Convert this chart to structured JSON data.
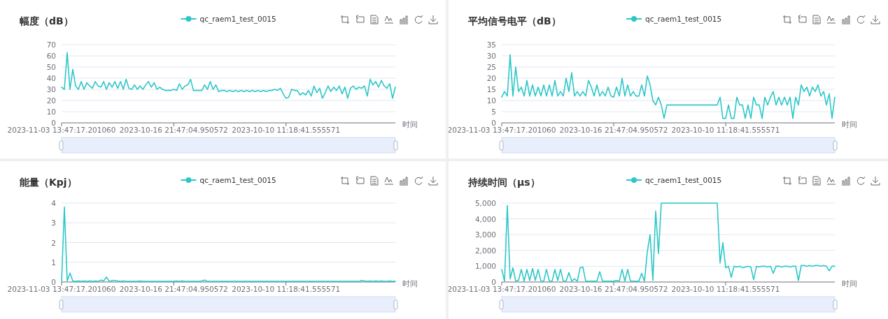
{
  "chart_data": [
    {
      "type": "line",
      "title": "幅度（dB）",
      "xlabel": "时间",
      "legend": "top",
      "grid": "y",
      "ylim": [
        0,
        70
      ],
      "yticks": [
        0,
        10,
        20,
        30,
        40,
        50,
        60,
        70
      ],
      "categories": [
        "2023-11-03 13:47:17.201060",
        null,
        null,
        null,
        null,
        null,
        null,
        null,
        null,
        null,
        null,
        null,
        null,
        null,
        null,
        null,
        null,
        null,
        null,
        null,
        null,
        null,
        null,
        null,
        null,
        null,
        null,
        null,
        null,
        null,
        null,
        null,
        null,
        null,
        null,
        null,
        null,
        null,
        null,
        null,
        "2023-10-16 21:47:04.950572",
        null,
        null,
        null,
        null,
        null,
        null,
        null,
        null,
        null,
        null,
        null,
        null,
        null,
        null,
        null,
        null,
        null,
        null,
        null,
        null,
        null,
        null,
        null,
        null,
        null,
        null,
        null,
        null,
        null,
        null,
        null,
        null,
        null,
        null,
        null,
        null,
        null,
        null,
        null,
        "2023-10-10 11:18:41.555571",
        null,
        null,
        null,
        null,
        null,
        null,
        null,
        null,
        null,
        null,
        null,
        null,
        null,
        null,
        null,
        null,
        null,
        null,
        null,
        null,
        null,
        null,
        null,
        null,
        null,
        null,
        null,
        null,
        null,
        null,
        null,
        null,
        null,
        null,
        null,
        null,
        null,
        null,
        null
      ],
      "series": [
        {
          "name": "qc_raem1_test_0015",
          "color": "#2ec7c9",
          "values": [
            32,
            30,
            63,
            30,
            48,
            33,
            30,
            37,
            30,
            36,
            33,
            31,
            37,
            33,
            32,
            37,
            30,
            36,
            32,
            37,
            31,
            37,
            30,
            39,
            31,
            30,
            34,
            30,
            33,
            30,
            34,
            37,
            32,
            36,
            30,
            32,
            30,
            29,
            29,
            29,
            30,
            29,
            35,
            30,
            33,
            34,
            39,
            29,
            29,
            29,
            29,
            34,
            30,
            37,
            30,
            34,
            28,
            29,
            29,
            28,
            29,
            28,
            29,
            28,
            29,
            28,
            29,
            28,
            29,
            28,
            29,
            28,
            29,
            28,
            29,
            29,
            30,
            29,
            31,
            26,
            22,
            23,
            30,
            29,
            29,
            25,
            27,
            25,
            29,
            24,
            33,
            27,
            31,
            22,
            27,
            33,
            28,
            32,
            29,
            33,
            26,
            32,
            22,
            31,
            33,
            30,
            32,
            31,
            33,
            24,
            39,
            34,
            37,
            32,
            38,
            33,
            31,
            35,
            22,
            32
          ]
        }
      ]
    },
    {
      "type": "line",
      "title": "平均信号电平（dB）",
      "xlabel": "时间",
      "legend": "top",
      "grid": "y",
      "ylim": [
        0,
        35
      ],
      "yticks": [
        0,
        5,
        10,
        15,
        20,
        25,
        30,
        35
      ],
      "categories": [
        "2023-11-03 13:47:17.201060",
        null,
        null,
        null,
        null,
        null,
        null,
        null,
        null,
        null,
        null,
        null,
        null,
        null,
        null,
        null,
        null,
        null,
        null,
        null,
        null,
        null,
        null,
        null,
        null,
        null,
        null,
        null,
        null,
        null,
        null,
        null,
        null,
        null,
        null,
        null,
        null,
        null,
        null,
        null,
        "2023-10-16 21:47:04.950572",
        null,
        null,
        null,
        null,
        null,
        null,
        null,
        null,
        null,
        null,
        null,
        null,
        null,
        null,
        null,
        null,
        null,
        null,
        null,
        null,
        null,
        null,
        null,
        null,
        null,
        null,
        null,
        null,
        null,
        null,
        null,
        null,
        null,
        null,
        null,
        null,
        null,
        null,
        null,
        "2023-10-10 11:18:41.555571",
        null,
        null,
        null,
        null,
        null,
        null,
        null,
        null,
        null,
        null,
        null,
        null,
        null,
        null,
        null,
        null,
        null,
        null,
        null,
        null,
        null,
        null,
        null,
        null,
        null,
        null,
        null,
        null,
        null,
        null,
        null,
        null,
        null,
        null,
        null,
        null,
        null,
        null,
        null
      ],
      "series": [
        {
          "name": "qc_raem1_test_0015",
          "color": "#2ec7c9",
          "values": [
            11.5,
            14,
            12,
            30.5,
            12,
            25,
            14,
            16,
            12,
            19,
            12,
            17,
            12,
            16,
            12,
            17,
            12,
            17,
            12,
            19,
            12,
            14,
            12,
            20,
            14,
            22.5,
            12,
            14,
            12,
            14,
            12,
            19,
            16,
            12,
            17,
            12,
            14,
            12,
            16,
            12,
            11.5,
            16,
            12,
            20,
            12,
            17,
            12,
            14,
            12,
            12,
            17,
            12,
            21,
            17,
            10,
            8,
            11.5,
            8,
            2,
            8,
            8,
            8,
            8,
            8,
            8,
            8,
            8,
            8,
            8,
            8,
            8,
            8,
            8,
            8,
            8,
            8,
            8,
            8,
            11.5,
            2,
            2,
            8,
            2,
            2,
            11.5,
            8,
            8,
            2,
            8,
            2,
            11.5,
            8,
            8,
            2,
            11.5,
            8,
            11.5,
            14,
            8,
            11.5,
            8,
            11.5,
            8,
            11.5,
            2,
            11.5,
            8,
            17,
            14,
            16,
            12,
            16,
            14,
            17,
            12,
            14,
            8,
            13,
            2,
            11.5
          ]
        }
      ]
    },
    {
      "type": "line",
      "title": "能量（Kpj）",
      "xlabel": "时间",
      "legend": "top",
      "grid": "y",
      "ylim": [
        0,
        4
      ],
      "yticks": [
        0,
        1,
        2,
        3,
        4
      ],
      "categories": [
        "2023-11-03 13:47:17.201060",
        null,
        null,
        null,
        null,
        null,
        null,
        null,
        null,
        null,
        null,
        null,
        null,
        null,
        null,
        null,
        null,
        null,
        null,
        null,
        null,
        null,
        null,
        null,
        null,
        null,
        null,
        null,
        null,
        null,
        null,
        null,
        null,
        null,
        null,
        null,
        null,
        null,
        null,
        null,
        "2023-10-16 21:47:04.950572",
        null,
        null,
        null,
        null,
        null,
        null,
        null,
        null,
        null,
        null,
        null,
        null,
        null,
        null,
        null,
        null,
        null,
        null,
        null,
        null,
        null,
        null,
        null,
        null,
        null,
        null,
        null,
        null,
        null,
        null,
        null,
        null,
        null,
        null,
        null,
        null,
        null,
        null,
        null,
        "2023-10-10 11:18:41.555571",
        null,
        null,
        null,
        null,
        null,
        null,
        null,
        null,
        null,
        null,
        null,
        null,
        null,
        null,
        null,
        null,
        null,
        null,
        null,
        null,
        null,
        null,
        null,
        null,
        null,
        null,
        null,
        null,
        null,
        null,
        null,
        null,
        null,
        null,
        null,
        null,
        null,
        null,
        null
      ],
      "series": [
        {
          "name": "qc_raem1_test_0015",
          "color": "#2ec7c9",
          "values": [
            0.03,
            3.8,
            0.05,
            0.45,
            0.05,
            0.03,
            0.05,
            0.03,
            0.05,
            0.03,
            0.05,
            0.03,
            0.05,
            0.03,
            0.1,
            0.05,
            0.25,
            0.03,
            0.08,
            0.08,
            0.05,
            0.03,
            0.05,
            0.03,
            0.03,
            0.03,
            0.03,
            0.03,
            0.05,
            0.03,
            0.03,
            0.03,
            0.03,
            0.03,
            0.03,
            0.03,
            0.03,
            0.03,
            0.03,
            0.03,
            0.03,
            0.05,
            0.03,
            0.05,
            0.03,
            0.03,
            0.03,
            0.03,
            0.03,
            0.03,
            0.05,
            0.1,
            0.03,
            0.03,
            0.03,
            0.03,
            0.03,
            0.03,
            0.03,
            0.03,
            0.03,
            0.03,
            0.03,
            0.03,
            0.03,
            0.03,
            0.03,
            0.03,
            0.03,
            0.03,
            0.03,
            0.03,
            0.03,
            0.03,
            0.03,
            0.03,
            0.03,
            0.03,
            0.03,
            0.03,
            0.03,
            0.03,
            0.03,
            0.03,
            0.03,
            0.03,
            0.03,
            0.03,
            0.03,
            0.03,
            0.03,
            0.03,
            0.03,
            0.03,
            0.03,
            0.03,
            0.03,
            0.03,
            0.03,
            0.03,
            0.03,
            0.03,
            0.03,
            0.03,
            0.03,
            0.03,
            0.03,
            0.08,
            0.05,
            0.03,
            0.05,
            0.03,
            0.05,
            0.03,
            0.05,
            0.03,
            0.03,
            0.05,
            0.03,
            0.03
          ]
        }
      ]
    },
    {
      "type": "line",
      "title": "持续时间（μs）",
      "xlabel": "时间",
      "legend": "top",
      "grid": "y",
      "ylim": [
        0,
        5000
      ],
      "yticks": [
        0,
        {
          "value": 1000,
          "label": "1,000"
        },
        {
          "value": 2000,
          "label": "2,000"
        },
        {
          "value": 3000,
          "label": "3,000"
        },
        {
          "value": 4000,
          "label": "4,000"
        },
        {
          "value": 5000,
          "label": "5,000"
        }
      ],
      "categories": [
        "2023-11-03 13:47:17.201060",
        null,
        null,
        null,
        null,
        null,
        null,
        null,
        null,
        null,
        null,
        null,
        null,
        null,
        null,
        null,
        null,
        null,
        null,
        null,
        null,
        null,
        null,
        null,
        null,
        null,
        null,
        null,
        null,
        null,
        null,
        null,
        null,
        null,
        null,
        null,
        null,
        null,
        null,
        null,
        "2023-10-16 21:47:04.950572",
        null,
        null,
        null,
        null,
        null,
        null,
        null,
        null,
        null,
        null,
        null,
        null,
        null,
        null,
        null,
        null,
        null,
        null,
        null,
        null,
        null,
        null,
        null,
        null,
        null,
        null,
        null,
        null,
        null,
        null,
        null,
        null,
        null,
        null,
        null,
        null,
        null,
        null,
        null,
        "2023-10-10 11:18:41.555571",
        null,
        null,
        null,
        null,
        null,
        null,
        null,
        null,
        null,
        null,
        null,
        null,
        null,
        null,
        null,
        null,
        null,
        null,
        null,
        null,
        null,
        null,
        null,
        null,
        null,
        null,
        null,
        null,
        null,
        null,
        null,
        null,
        null,
        null,
        null,
        null,
        null,
        null,
        null
      ],
      "series": [
        {
          "name": "qc_raem1_test_0015",
          "color": "#2ec7c9",
          "values": [
            800,
            50,
            4850,
            200,
            900,
            50,
            100,
            800,
            50,
            800,
            100,
            850,
            100,
            800,
            50,
            50,
            800,
            50,
            50,
            800,
            100,
            800,
            50,
            50,
            600,
            50,
            200,
            50,
            900,
            950,
            50,
            50,
            50,
            50,
            50,
            650,
            50,
            50,
            50,
            50,
            50,
            100,
            50,
            800,
            50,
            800,
            50,
            50,
            50,
            50,
            550,
            50,
            1900,
            3000,
            100,
            4500,
            1800,
            5000,
            5000,
            5000,
            5000,
            5000,
            5000,
            5000,
            5000,
            5000,
            5000,
            5000,
            5000,
            5000,
            5000,
            5000,
            5000,
            5000,
            5000,
            5000,
            5000,
            5000,
            1200,
            2500,
            900,
            1000,
            300,
            1000,
            950,
            1000,
            900,
            950,
            1000,
            950,
            150,
            1000,
            950,
            1000,
            1000,
            950,
            1000,
            550,
            1000,
            1000,
            950,
            1000,
            1000,
            950,
            1000,
            1000,
            100,
            1050,
            1050,
            1000,
            1050,
            1000,
            1050,
            1050,
            1000,
            1050,
            1000,
            700,
            1000,
            1000
          ]
        }
      ]
    }
  ]
}
